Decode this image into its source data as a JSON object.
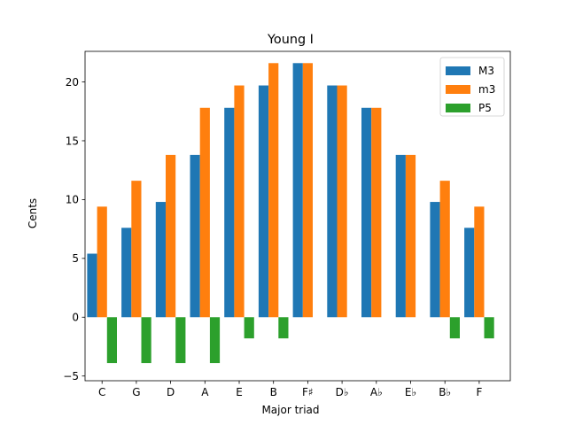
{
  "chart_data": {
    "type": "bar",
    "title": "Young I",
    "xlabel": "Major triad",
    "ylabel": "Cents",
    "categories": [
      "C",
      "G",
      "D",
      "A",
      "E",
      "B",
      "F♯",
      "D♭",
      "A♭",
      "E♭",
      "B♭",
      "F"
    ],
    "series": [
      {
        "name": "M3",
        "color": "#1f77b4",
        "values": [
          5.4,
          7.6,
          9.8,
          13.8,
          17.8,
          19.7,
          21.6,
          19.7,
          17.8,
          13.8,
          9.8,
          7.6
        ]
      },
      {
        "name": "m3",
        "color": "#ff7f0e",
        "values": [
          9.4,
          11.6,
          13.8,
          17.8,
          19.7,
          21.6,
          21.6,
          19.7,
          17.8,
          13.8,
          11.6,
          9.4
        ]
      },
      {
        "name": "P5",
        "color": "#2ca02c",
        "values": [
          -3.9,
          -3.9,
          -3.9,
          -3.9,
          -1.8,
          -1.8,
          0,
          0,
          0,
          0,
          -1.8,
          -1.8
        ]
      }
    ],
    "ylim": [
      -5.4,
      22.6
    ],
    "yticks": [
      -5,
      0,
      5,
      10,
      15,
      20
    ],
    "legend": "top-right",
    "grid": false
  }
}
